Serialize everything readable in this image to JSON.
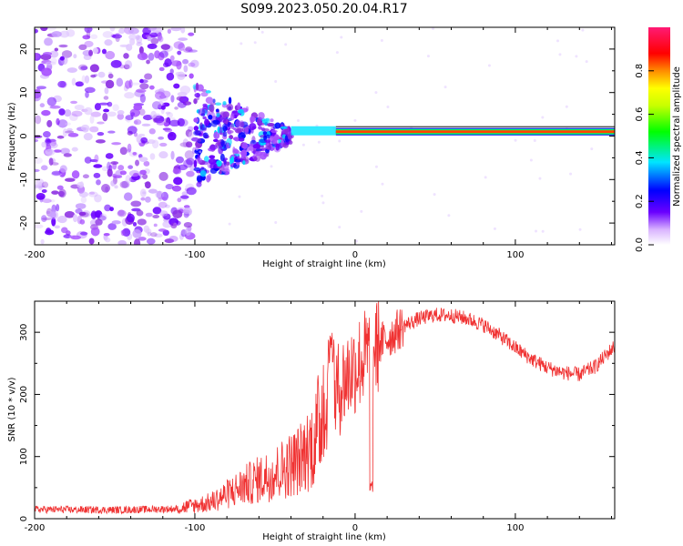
{
  "title": "S099.2023.050.20.04.R17",
  "chart_data": [
    {
      "type": "heatmap",
      "name": "spectrogram",
      "xlabel": "Height of straight line (km)",
      "ylabel": "Frequency (Hz)",
      "xlim": [
        -200,
        162
      ],
      "ylim": [
        -25,
        25
      ],
      "xticks": [
        -200,
        -100,
        0,
        100
      ],
      "yticks": [
        -20,
        -10,
        0,
        10,
        20
      ],
      "colorbar": {
        "label": "Normalized spectral amplitude",
        "range": [
          0,
          1
        ],
        "ticks": [
          0.0,
          0.2,
          0.4,
          0.6,
          0.8
        ]
      },
      "features": {
        "carrier_frequency_hz": 1,
        "carrier_start_km": -12,
        "scatter_region_km": [
          -200,
          -100
        ],
        "transition_region_km": [
          -100,
          -40
        ]
      }
    },
    {
      "type": "line",
      "name": "snr",
      "xlabel": "Height of straight line (km)",
      "ylabel": "SNR (10 * v/v)",
      "xlim": [
        -200,
        162
      ],
      "ylim": [
        0,
        350
      ],
      "xticks": [
        -200,
        -100,
        0,
        100
      ],
      "yticks": [
        0,
        100,
        200,
        300
      ],
      "color": "#f03232",
      "envelope_x": [
        -200,
        -150,
        -110,
        -90,
        -70,
        -50,
        -35,
        -25,
        -20,
        -15,
        -10,
        -5,
        0,
        10,
        20,
        30,
        40,
        50,
        60,
        70,
        80,
        90,
        100,
        110,
        120,
        130,
        140,
        150,
        162
      ],
      "envelope_y": [
        15,
        14,
        16,
        25,
        50,
        70,
        90,
        120,
        170,
        190,
        210,
        230,
        245,
        270,
        290,
        310,
        322,
        328,
        327,
        322,
        312,
        295,
        275,
        257,
        243,
        235,
        232,
        245,
        278
      ]
    }
  ]
}
